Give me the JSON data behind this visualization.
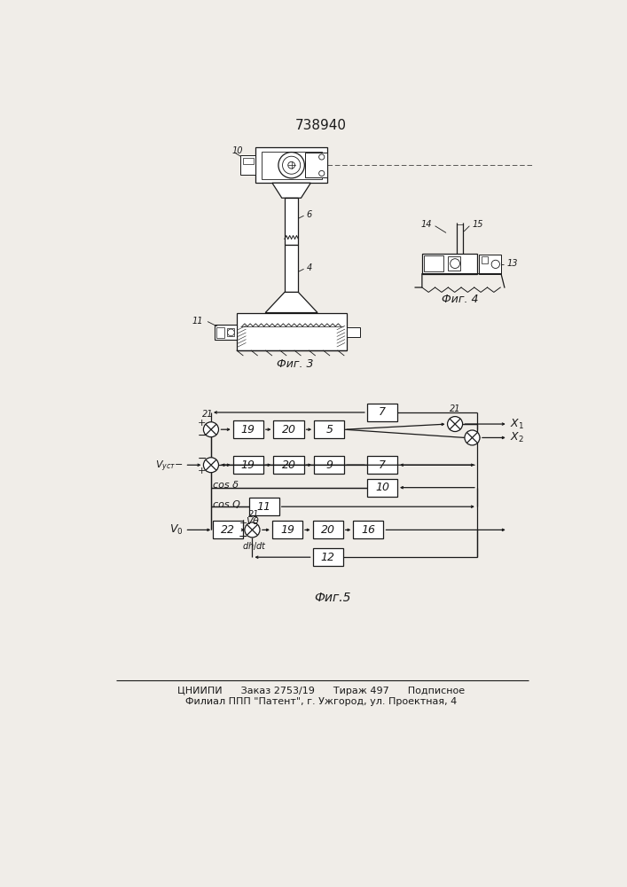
{
  "title": "738940",
  "bg_color": "#f0ede8",
  "line_color": "#1a1a1a",
  "footer_line1": "ЦНИИПИ      Заказ 2753/19      Тираж 497      Подписное",
  "footer_line2": "Филиал ППП \"Патент\", г. Ужгород, ул. Проектная, 4"
}
